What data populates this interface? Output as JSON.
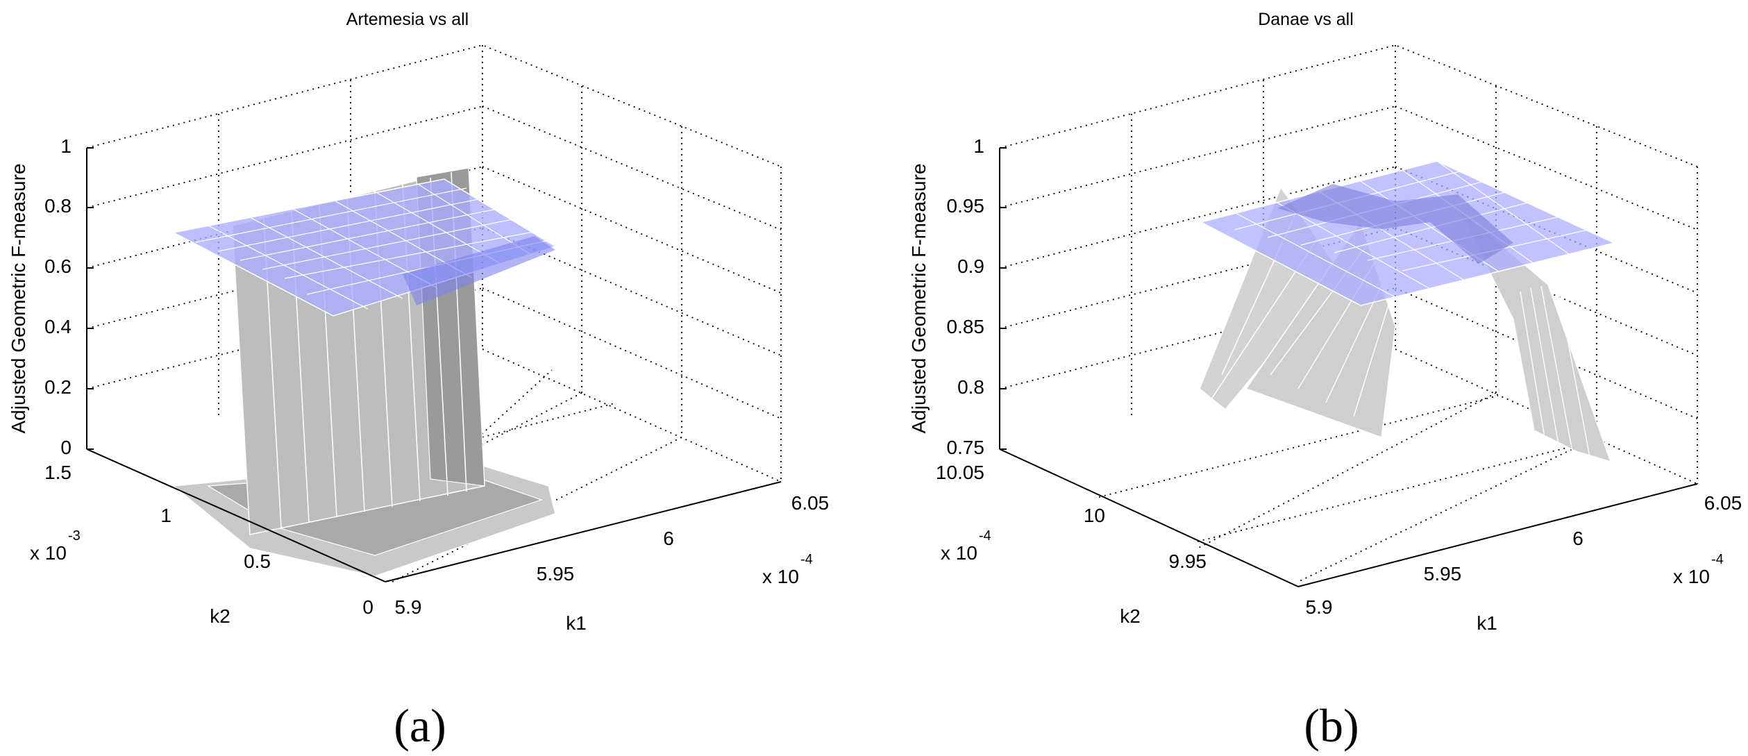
{
  "figure": {
    "captions": [
      "(a)",
      "(b)"
    ]
  },
  "chart_data": [
    {
      "type": "surface",
      "title": "Artemesia vs all",
      "xlabel": "k1",
      "ylabel": "k2",
      "zlabel": "Adjusted Geometric F-measure",
      "x_ticks": [
        "5.9",
        "5.95",
        "6",
        "6.05"
      ],
      "x_multiplier": "x 10",
      "x_exponent": "-4",
      "y_ticks": [
        "0",
        "0.5",
        "1",
        "1.5"
      ],
      "y_multiplier": "x 10",
      "y_exponent": "-3",
      "z_ticks": [
        "0",
        "0.2",
        "0.4",
        "0.6",
        "0.8",
        "1"
      ],
      "xlim": [
        0.00059,
        0.000605
      ],
      "ylim": [
        0,
        0.0015
      ],
      "zlim": [
        0,
        1
      ],
      "grid": true,
      "series": [
        {
          "color": "#a8acff",
          "x_range": [
            0.000591,
            0.000602
          ],
          "y_range": [
            0.0002,
            0.0012
          ],
          "z": 0.72
        },
        {
          "color": "#c8c8c8",
          "profile": [
            {
              "y": 0.0002,
              "z": 0.05
            },
            {
              "y": 0.00045,
              "z": 0.05
            },
            {
              "y": 0.00047,
              "z": 0.78
            },
            {
              "y": 0.0011,
              "z": 0.78
            },
            {
              "y": 0.00112,
              "z": 0.08
            },
            {
              "y": 0.0012,
              "z": 0.08
            }
          ]
        }
      ]
    },
    {
      "type": "surface",
      "title": "Danae vs all",
      "xlabel": "k1",
      "ylabel": "k2",
      "zlabel": "Adjusted Geometric F-measure",
      "x_ticks": [
        "5.9",
        "5.95",
        "6",
        "6.05"
      ],
      "x_multiplier": "x 10",
      "x_exponent": "-4",
      "y_ticks": [
        "9.95",
        "10",
        "10.05"
      ],
      "y_multiplier": "x 10",
      "y_exponent": "-4",
      "z_ticks": [
        "0.75",
        "0.8",
        "0.85",
        "0.9",
        "0.95",
        "1"
      ],
      "xlim": [
        0.00059,
        0.000605
      ],
      "ylim": [
        0.000995,
        0.0010075
      ],
      "zlim": [
        0.75,
        1
      ],
      "grid": true,
      "series": [
        {
          "color": "#a8acff",
          "x_range": [
            0.000592,
            0.000603
          ],
          "y_range": [
            0.000997,
            0.001005
          ],
          "z": 0.93
        },
        {
          "color": "#d0d0d0",
          "profile": [
            {
              "y": 0.000997,
              "z": 0.79
            },
            {
              "y": 0.000999,
              "z": 0.935
            },
            {
              "y": 0.0010005,
              "z": 0.94
            },
            {
              "y": 0.001002,
              "z": 0.935
            },
            {
              "y": 0.001004,
              "z": 0.79
            }
          ]
        }
      ]
    }
  ]
}
